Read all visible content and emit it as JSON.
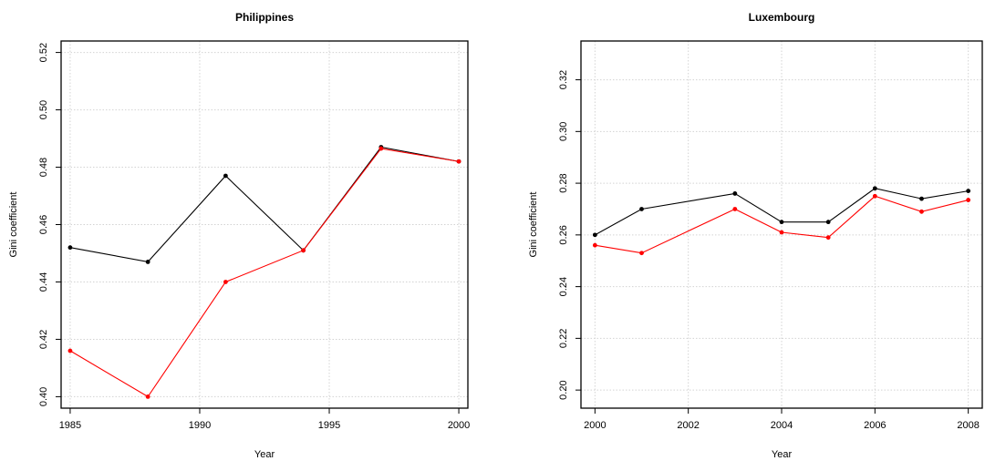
{
  "colors": {
    "series_1": "#000000",
    "series_2": "#ff0000",
    "grid": "#d3d3d3",
    "axis": "#000000"
  },
  "chart_data": [
    {
      "type": "line",
      "title": "Philippines",
      "xlabel": "Year",
      "ylabel": "Gini coefficient",
      "xlim": [
        1984.65,
        2000.35
      ],
      "ylim": [
        0.396,
        0.524
      ],
      "xticks": [
        1985,
        1990,
        1995,
        2000
      ],
      "yticks": [
        0.4,
        0.42,
        0.44,
        0.46,
        0.48,
        0.5,
        0.52
      ],
      "ytick_labels": [
        "0.40",
        "0.42",
        "0.44",
        "0.46",
        "0.48",
        "0.50",
        "0.52"
      ],
      "grid": true,
      "series": [
        {
          "color": "#000000",
          "x": [
            1985,
            1988,
            1991,
            1994,
            1997,
            2000
          ],
          "y": [
            0.452,
            0.447,
            0.477,
            0.451,
            0.487,
            0.482
          ]
        },
        {
          "color": "#ff0000",
          "x": [
            1985,
            1988,
            1991,
            1994,
            1997,
            2000
          ],
          "y": [
            0.416,
            0.4,
            0.44,
            0.451,
            0.4865,
            0.482
          ]
        }
      ]
    },
    {
      "type": "line",
      "title": "Luxembourg",
      "xlabel": "Year",
      "ylabel": "Gini coefficient",
      "xlim": [
        1999.7,
        2008.3
      ],
      "ylim": [
        0.193,
        0.335
      ],
      "xticks": [
        2000,
        2002,
        2004,
        2006,
        2008
      ],
      "yticks": [
        0.2,
        0.22,
        0.24,
        0.26,
        0.28,
        0.3,
        0.32
      ],
      "ytick_labels": [
        "0.20",
        "0.22",
        "0.24",
        "0.26",
        "0.28",
        "0.30",
        "0.32"
      ],
      "grid": true,
      "series": [
        {
          "color": "#000000",
          "x": [
            2000,
            2001,
            2003,
            2004,
            2005,
            2006,
            2007,
            2008
          ],
          "y": [
            0.26,
            0.27,
            0.276,
            0.265,
            0.265,
            0.278,
            0.274,
            0.277
          ]
        },
        {
          "color": "#ff0000",
          "x": [
            2000,
            2001,
            2003,
            2004,
            2005,
            2006,
            2007,
            2008
          ],
          "y": [
            0.256,
            0.253,
            0.27,
            0.261,
            0.259,
            0.275,
            0.269,
            0.2735
          ]
        }
      ]
    }
  ]
}
